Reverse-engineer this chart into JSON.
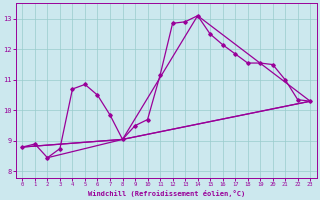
{
  "xlabel": "Windchill (Refroidissement éolien,°C)",
  "bg_color": "#cce8ee",
  "line_color": "#990099",
  "grid_color": "#99cccc",
  "xlim": [
    -0.5,
    23.5
  ],
  "ylim": [
    7.8,
    13.5
  ],
  "yticks": [
    8,
    9,
    10,
    11,
    12,
    13
  ],
  "xticks": [
    0,
    1,
    2,
    3,
    4,
    5,
    6,
    7,
    8,
    9,
    10,
    11,
    12,
    13,
    14,
    15,
    16,
    17,
    18,
    19,
    20,
    21,
    22,
    23
  ],
  "series": [
    [
      0,
      8.8
    ],
    [
      1,
      8.9
    ],
    [
      2,
      8.45
    ],
    [
      3,
      8.75
    ],
    [
      4,
      10.7
    ],
    [
      5,
      10.85
    ],
    [
      6,
      10.5
    ],
    [
      7,
      9.85
    ],
    [
      8,
      9.05
    ],
    [
      9,
      9.5
    ],
    [
      10,
      9.7
    ],
    [
      11,
      11.15
    ],
    [
      12,
      12.85
    ],
    [
      13,
      12.9
    ],
    [
      14,
      13.1
    ],
    [
      15,
      12.5
    ],
    [
      16,
      12.15
    ],
    [
      17,
      11.85
    ],
    [
      18,
      11.55
    ],
    [
      19,
      11.55
    ],
    [
      20,
      11.5
    ],
    [
      21,
      11.0
    ],
    [
      22,
      10.35
    ],
    [
      23,
      10.3
    ]
  ],
  "line2": [
    [
      0,
      8.8
    ],
    [
      8,
      9.05
    ],
    [
      14,
      13.1
    ],
    [
      23,
      10.3
    ]
  ],
  "line3": [
    [
      0,
      8.8
    ],
    [
      8,
      9.05
    ],
    [
      23,
      10.3
    ]
  ],
  "line4": [
    [
      2,
      8.45
    ],
    [
      8,
      9.05
    ],
    [
      23,
      10.3
    ]
  ]
}
